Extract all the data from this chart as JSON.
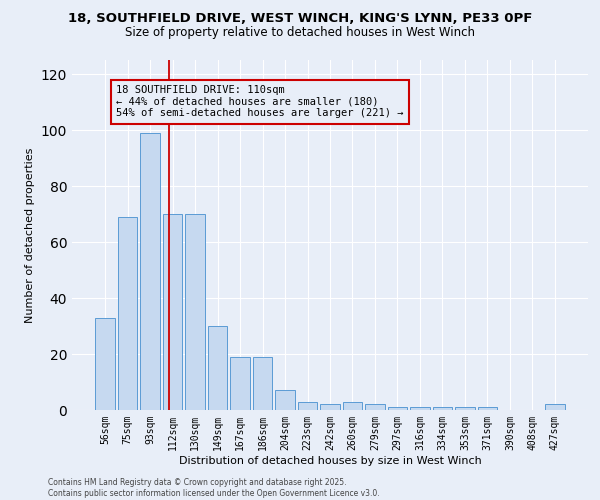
{
  "title_line1": "18, SOUTHFIELD DRIVE, WEST WINCH, KING'S LYNN, PE33 0PF",
  "title_line2": "Size of property relative to detached houses in West Winch",
  "xlabel": "Distribution of detached houses by size in West Winch",
  "ylabel": "Number of detached properties",
  "categories": [
    "56sqm",
    "75sqm",
    "93sqm",
    "112sqm",
    "130sqm",
    "149sqm",
    "167sqm",
    "186sqm",
    "204sqm",
    "223sqm",
    "242sqm",
    "260sqm",
    "279sqm",
    "297sqm",
    "316sqm",
    "334sqm",
    "353sqm",
    "371sqm",
    "390sqm",
    "408sqm",
    "427sqm"
  ],
  "values": [
    33,
    69,
    99,
    70,
    70,
    30,
    19,
    19,
    7,
    3,
    2,
    3,
    2,
    1,
    1,
    1,
    1,
    1,
    0,
    0,
    2
  ],
  "bar_color": "#c6d9f0",
  "bar_edge_color": "#5b9bd5",
  "ref_line_color": "#cc0000",
  "ref_bar_index": 3,
  "annotation_text_line1": "18 SOUTHFIELD DRIVE: 110sqm",
  "annotation_text_line2": "← 44% of detached houses are smaller (180)",
  "annotation_text_line3": "54% of semi-detached houses are larger (221) →",
  "ylim": [
    0,
    125
  ],
  "yticks": [
    0,
    20,
    40,
    60,
    80,
    100,
    120
  ],
  "bg_color": "#e8eef8",
  "footer_text": "Contains HM Land Registry data © Crown copyright and database right 2025.\nContains public sector information licensed under the Open Government Licence v3.0.",
  "title_fontsize": 9.5,
  "subtitle_fontsize": 8.5,
  "xlabel_fontsize": 8,
  "ylabel_fontsize": 8,
  "tick_fontsize": 7,
  "annotation_fontsize": 7.5,
  "footer_fontsize": 5.5
}
